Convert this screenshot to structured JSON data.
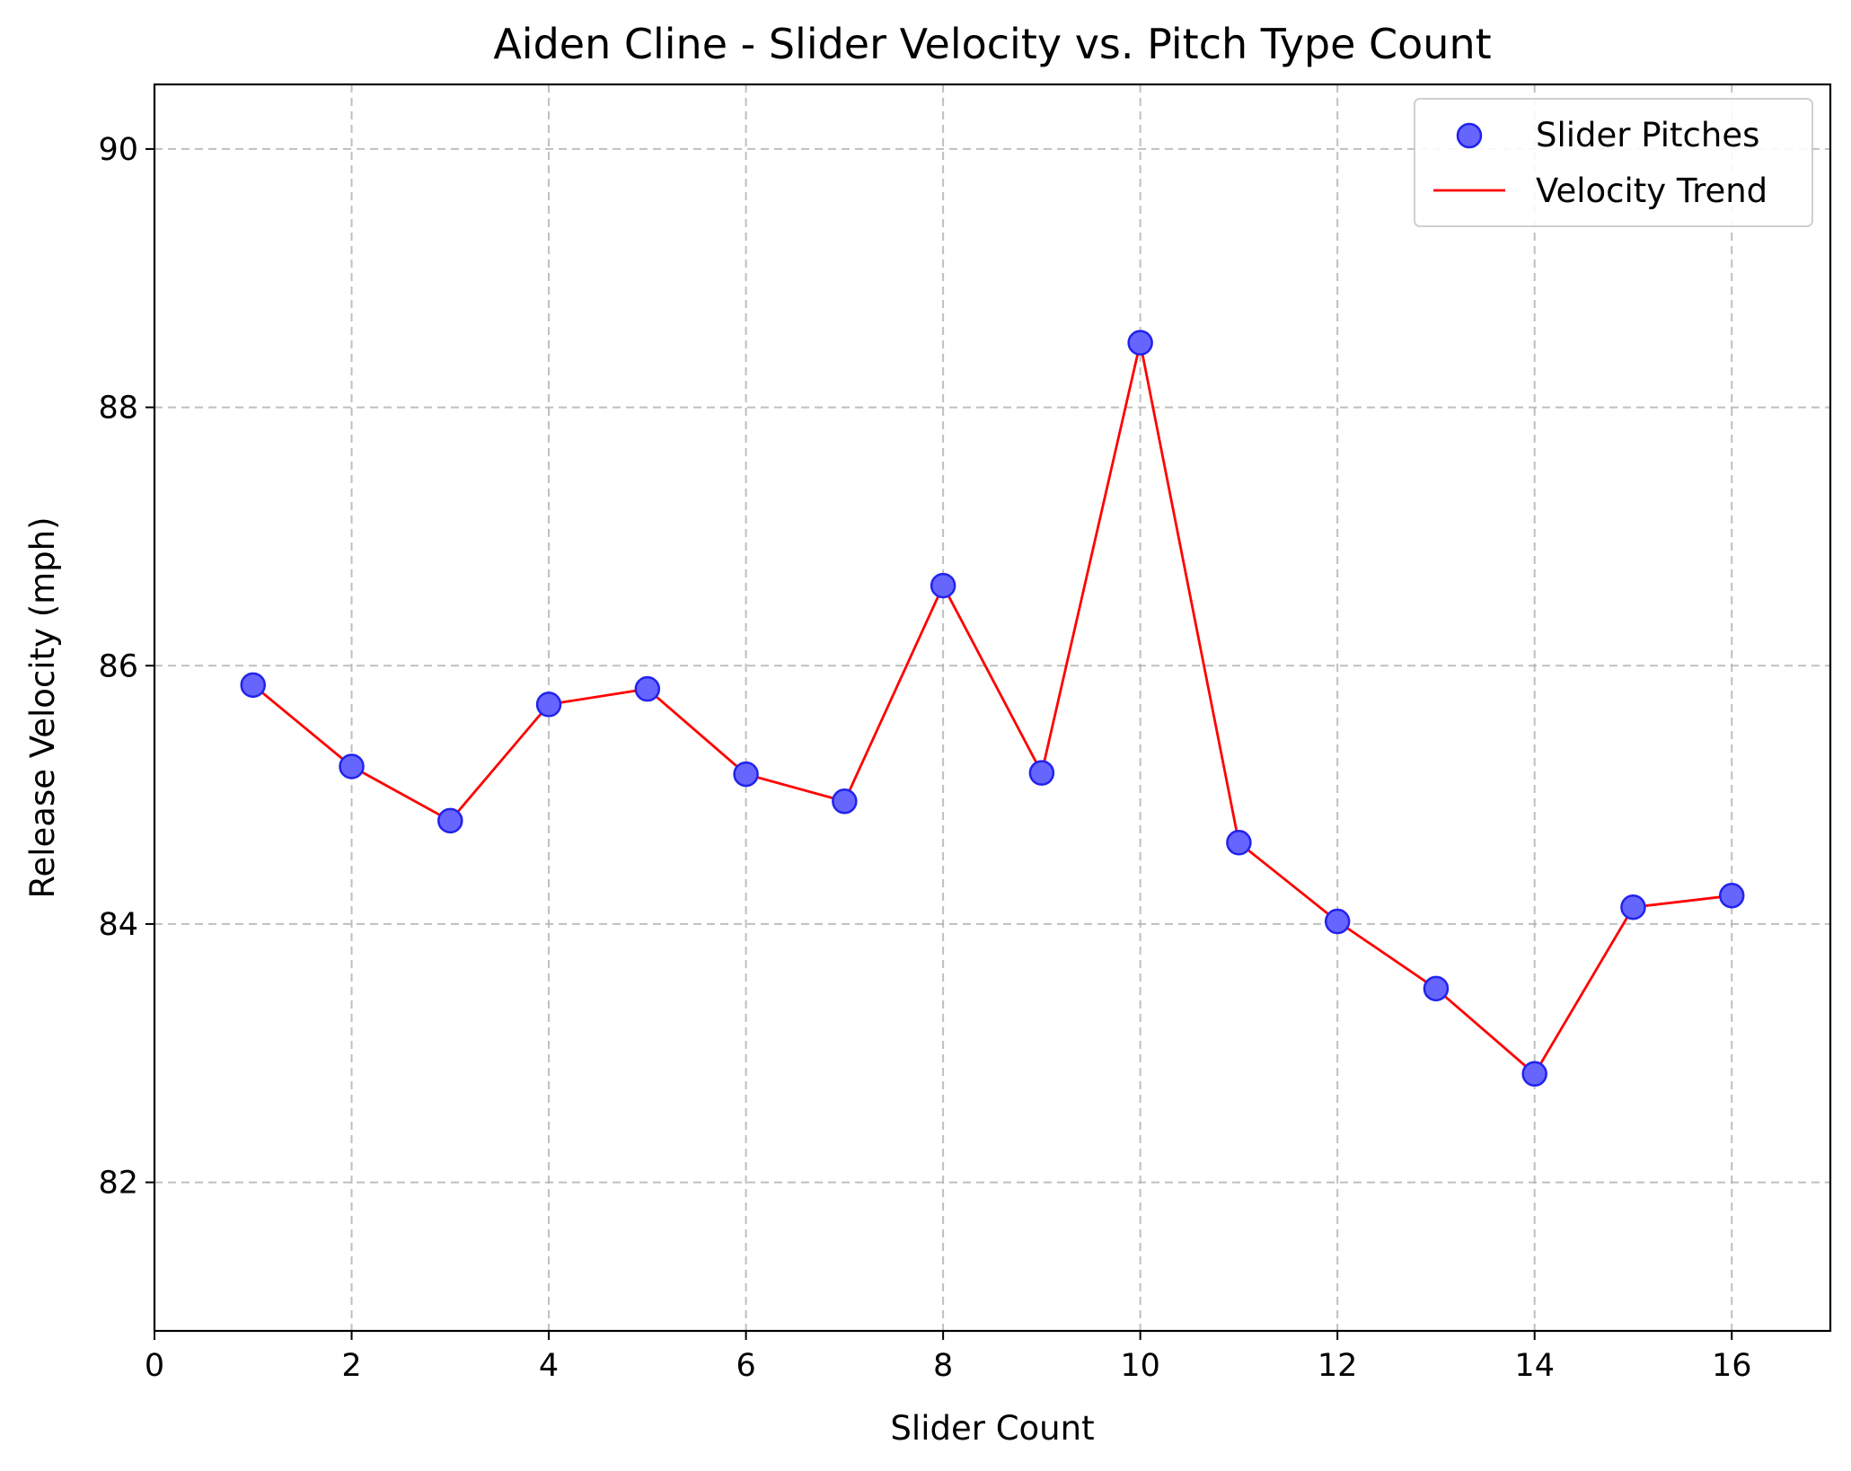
{
  "chart_data": {
    "type": "scatter",
    "title": "Aiden Cline - Slider Velocity vs. Pitch Type Count",
    "xlabel": "Slider Count",
    "ylabel": "Release Velocity (mph)",
    "xlim": [
      0,
      17
    ],
    "ylim": [
      80.85,
      90.5
    ],
    "xticks": [
      0,
      2,
      4,
      6,
      8,
      10,
      12,
      14,
      16
    ],
    "yticks": [
      82,
      84,
      86,
      88,
      90
    ],
    "grid": true,
    "legend_position": "top-right",
    "series": [
      {
        "name": "Slider Pitches",
        "kind": "scatter",
        "color": "#6666ff",
        "x": [
          1,
          2,
          3,
          4,
          5,
          6,
          7,
          8,
          9,
          10,
          11,
          12,
          13,
          14,
          15,
          16
        ],
        "y": [
          85.85,
          85.22,
          84.8,
          85.7,
          85.82,
          85.16,
          84.95,
          86.62,
          85.17,
          88.5,
          84.63,
          84.02,
          83.5,
          82.84,
          84.13,
          84.22
        ]
      },
      {
        "name": "Velocity Trend",
        "kind": "line",
        "color": "#ff0000",
        "x": [
          1,
          2,
          3,
          4,
          5,
          6,
          7,
          8,
          9,
          10,
          11,
          12,
          13,
          14,
          15,
          16
        ],
        "y": [
          85.85,
          85.22,
          84.8,
          85.7,
          85.82,
          85.16,
          84.95,
          86.62,
          85.17,
          88.5,
          84.63,
          84.02,
          83.5,
          82.84,
          84.13,
          84.22
        ]
      }
    ]
  }
}
